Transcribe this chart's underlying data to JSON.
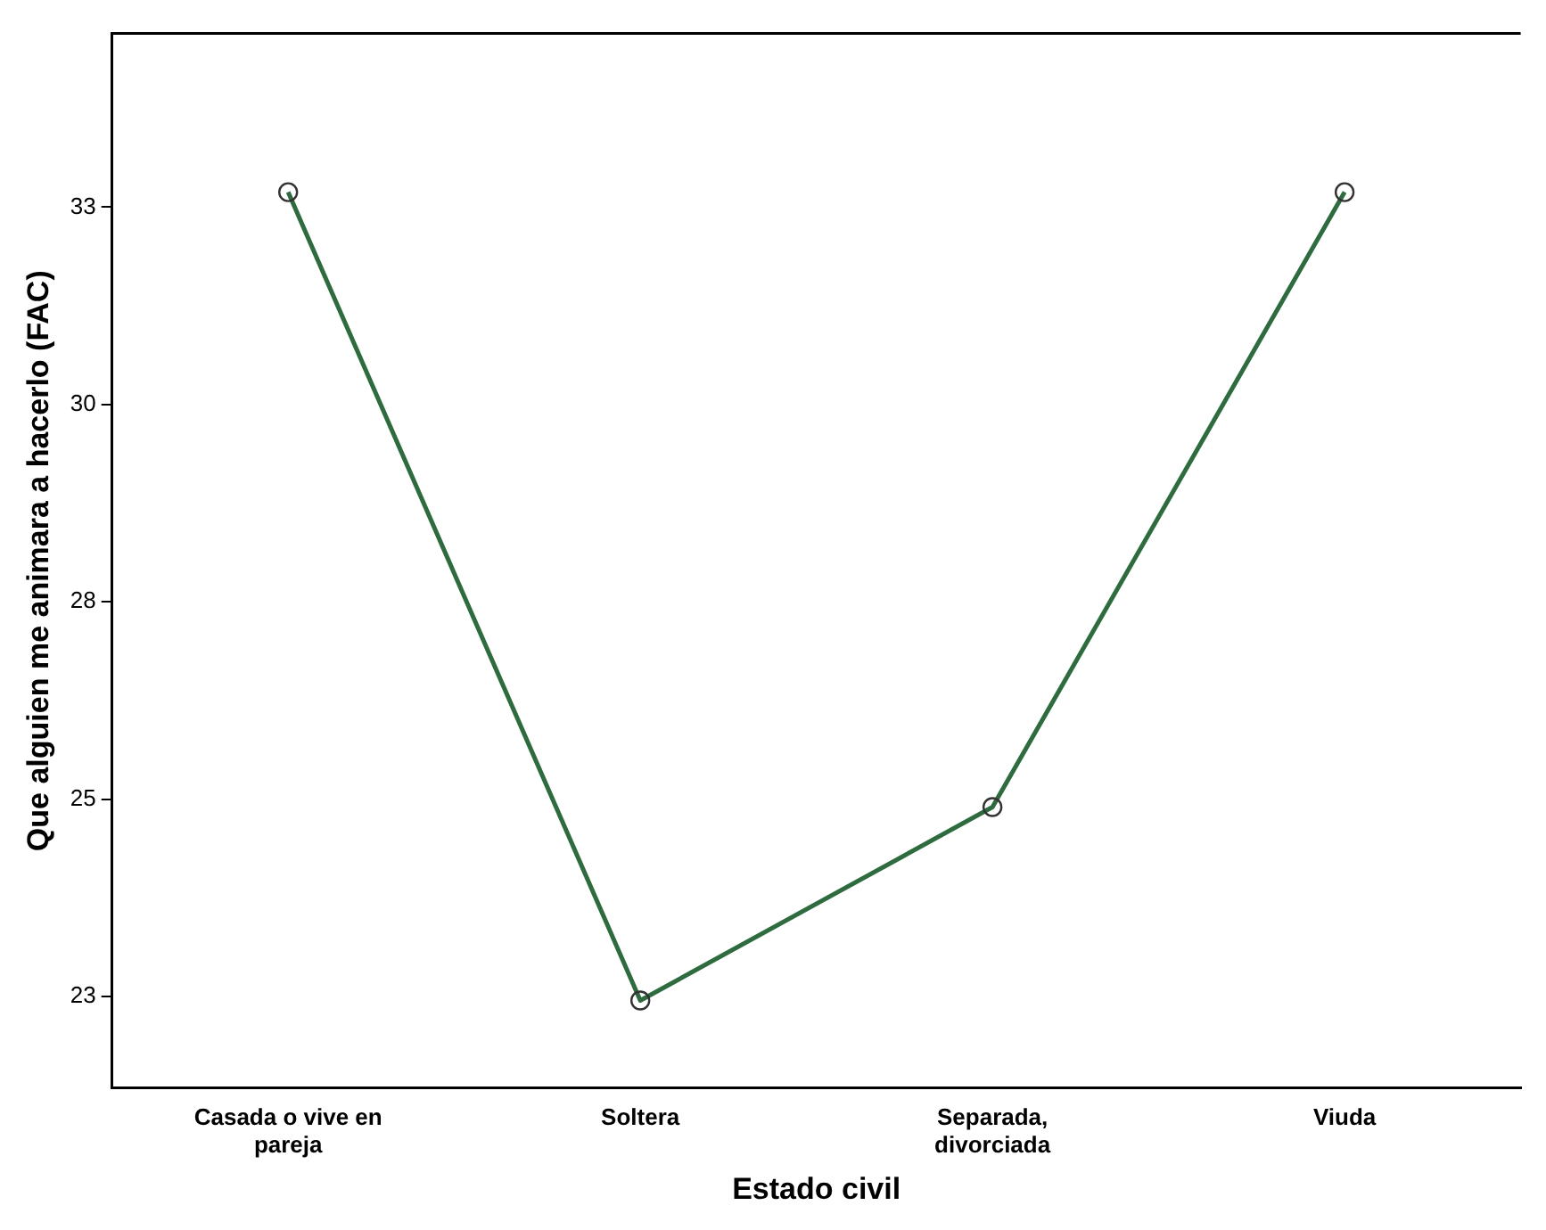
{
  "chart_data": {
    "type": "line",
    "xlabel": "Estado civil",
    "ylabel": "Que alguien me animara a hacerlo (FAC)",
    "categories": [
      "Casada o vive en pareja",
      "Soltera",
      "Separada, divorciada",
      "Viuda"
    ],
    "series": [
      {
        "color": "#2e6b3f",
        "values": [
          32.69,
          22.45,
          24.9,
          32.69
        ]
      }
    ],
    "ylim": [
      21.34,
      34.7
    ],
    "yticks": [
      {
        "value": 22.5,
        "label": "23"
      },
      {
        "value": 25,
        "label": "25"
      },
      {
        "value": 27.5,
        "label": "28"
      },
      {
        "value": 30,
        "label": "30"
      },
      {
        "value": 32.5,
        "label": "33"
      }
    ],
    "grid": false,
    "legend": false,
    "marker": "circle",
    "line_style": "solid"
  }
}
